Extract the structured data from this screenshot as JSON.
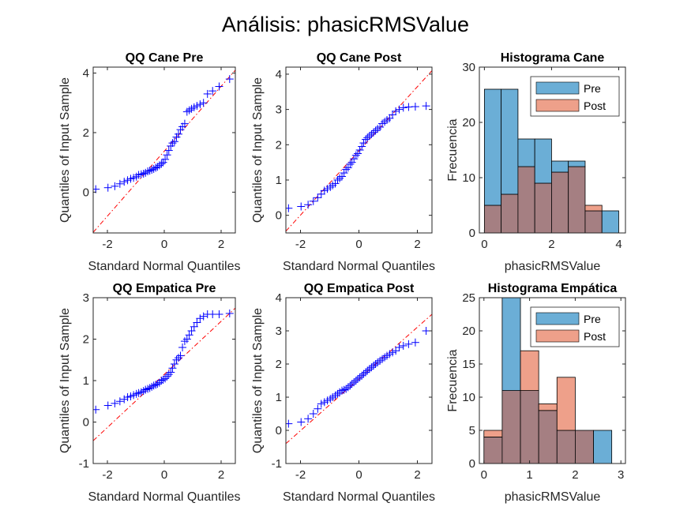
{
  "figure": {
    "title": "Análisis: phasicRMSValue"
  },
  "chart_data": [
    {
      "id": "qq_cane_pre",
      "type": "scatter",
      "title": "QQ Cane Pre",
      "xlabel": "Standard Normal Quantiles",
      "ylabel": "Quantiles of Input Sample",
      "xlim": [
        -2.5,
        2.5
      ],
      "ylim": [
        -1.37,
        4.2
      ],
      "xticks": [
        -2,
        0,
        2
      ],
      "yticks": [
        0,
        2,
        4
      ],
      "marker_color": "#0000ff",
      "ref_line_color": "#ff0000",
      "ref_line": {
        "x": [
          -2.5,
          2.5
        ],
        "y": [
          -1.35,
          4.1
        ]
      },
      "x": [
        -2.41,
        -1.98,
        -1.74,
        -1.56,
        -1.41,
        -1.29,
        -1.18,
        -1.08,
        -0.98,
        -0.9,
        -0.81,
        -0.73,
        -0.66,
        -0.58,
        -0.51,
        -0.44,
        -0.37,
        -0.3,
        -0.24,
        -0.17,
        -0.1,
        -0.04,
        0.03,
        0.1,
        0.16,
        0.23,
        0.29,
        0.36,
        0.43,
        0.5,
        0.57,
        0.64,
        0.72,
        0.8,
        0.88,
        0.96,
        1.05,
        1.15,
        1.26,
        1.38,
        1.52,
        1.7,
        1.93,
        2.3
      ],
      "y": [
        0.1,
        0.15,
        0.2,
        0.28,
        0.35,
        0.4,
        0.45,
        0.48,
        0.52,
        0.58,
        0.6,
        0.62,
        0.65,
        0.7,
        0.72,
        0.75,
        0.78,
        0.82,
        0.85,
        0.9,
        0.95,
        1.0,
        1.1,
        1.25,
        1.4,
        1.55,
        1.65,
        1.7,
        1.85,
        1.95,
        2.1,
        2.2,
        2.3,
        2.7,
        2.75,
        2.8,
        2.85,
        2.9,
        2.95,
        3.0,
        3.3,
        3.4,
        3.55,
        3.8
      ]
    },
    {
      "id": "qq_cane_post",
      "type": "scatter",
      "title": "QQ Cane Post",
      "xlabel": "Standard Normal Quantiles",
      "ylabel": "Quantiles of Input Sample",
      "xlim": [
        -2.5,
        2.5
      ],
      "ylim": [
        -0.5,
        4.2
      ],
      "xticks": [
        -2,
        0,
        2
      ],
      "yticks": [
        0,
        1,
        2,
        3,
        4
      ],
      "marker_color": "#0000ff",
      "ref_line_color": "#ff0000",
      "ref_line": {
        "x": [
          -2.5,
          2.5
        ],
        "y": [
          -0.45,
          4.1
        ]
      },
      "x": [
        -2.41,
        -1.98,
        -1.74,
        -1.56,
        -1.41,
        -1.29,
        -1.18,
        -1.08,
        -0.98,
        -0.9,
        -0.81,
        -0.73,
        -0.66,
        -0.58,
        -0.51,
        -0.44,
        -0.37,
        -0.3,
        -0.24,
        -0.17,
        -0.1,
        -0.04,
        0.03,
        0.1,
        0.16,
        0.23,
        0.29,
        0.36,
        0.43,
        0.5,
        0.57,
        0.64,
        0.72,
        0.8,
        0.88,
        0.96,
        1.05,
        1.15,
        1.26,
        1.38,
        1.52,
        1.7,
        1.93,
        2.3
      ],
      "y": [
        0.2,
        0.25,
        0.3,
        0.4,
        0.5,
        0.6,
        0.7,
        0.75,
        0.8,
        0.85,
        0.9,
        1.0,
        1.05,
        1.1,
        1.2,
        1.3,
        1.35,
        1.45,
        1.5,
        1.6,
        1.7,
        1.75,
        1.85,
        1.95,
        2.05,
        2.15,
        2.2,
        2.25,
        2.3,
        2.35,
        2.4,
        2.45,
        2.5,
        2.6,
        2.65,
        2.7,
        2.75,
        2.85,
        2.95,
        3.0,
        3.05,
        3.07,
        3.08,
        3.1
      ]
    },
    {
      "id": "hist_cane",
      "type": "bar",
      "title": "Histograma Cane",
      "xlabel": "phasicRMSValue",
      "ylabel": "Frecuencia",
      "xlim": [
        -0.15,
        4.2
      ],
      "ylim": [
        0,
        30
      ],
      "xticks": [
        0,
        2,
        4
      ],
      "yticks": [
        0,
        10,
        20,
        30
      ],
      "bin_edges": [
        0,
        0.5,
        1.0,
        1.5,
        2.0,
        2.5,
        3.0,
        3.5,
        4.0
      ],
      "series": [
        {
          "name": "Pre",
          "color": "#6baed6",
          "values": [
            26,
            26,
            17,
            17,
            13,
            13,
            4,
            4
          ]
        },
        {
          "name": "Post",
          "color": "#eea08a",
          "values": [
            5,
            7,
            12,
            9,
            11,
            12,
            5,
            0
          ]
        }
      ],
      "overlap_color": "#a57f82",
      "legend_position": "top-right"
    },
    {
      "id": "qq_empatica_pre",
      "type": "scatter",
      "title": "QQ Empatica Pre",
      "xlabel": "Standard Normal Quantiles",
      "ylabel": "Quantiles of Input Sample",
      "xlim": [
        -2.5,
        2.5
      ],
      "ylim": [
        -1.0,
        3.0
      ],
      "xticks": [
        -2,
        0,
        2
      ],
      "yticks": [
        -1,
        0,
        1,
        2,
        3
      ],
      "marker_color": "#0000ff",
      "ref_line_color": "#ff0000",
      "ref_line": {
        "x": [
          -2.5,
          2.5
        ],
        "y": [
          -0.45,
          2.75
        ]
      },
      "x": [
        -2.41,
        -1.98,
        -1.74,
        -1.56,
        -1.41,
        -1.29,
        -1.18,
        -1.08,
        -0.98,
        -0.9,
        -0.81,
        -0.73,
        -0.66,
        -0.58,
        -0.51,
        -0.44,
        -0.37,
        -0.3,
        -0.24,
        -0.17,
        -0.1,
        -0.04,
        0.03,
        0.1,
        0.16,
        0.23,
        0.29,
        0.36,
        0.43,
        0.5,
        0.57,
        0.64,
        0.72,
        0.8,
        0.88,
        0.96,
        1.05,
        1.15,
        1.26,
        1.38,
        1.52,
        1.7,
        1.93,
        2.3
      ],
      "y": [
        0.3,
        0.4,
        0.45,
        0.5,
        0.55,
        0.6,
        0.62,
        0.65,
        0.68,
        0.7,
        0.72,
        0.75,
        0.78,
        0.8,
        0.82,
        0.85,
        0.88,
        0.9,
        0.92,
        0.95,
        1.0,
        1.02,
        1.05,
        1.1,
        1.15,
        1.2,
        1.3,
        1.4,
        1.5,
        1.55,
        1.6,
        1.8,
        1.95,
        2.0,
        2.1,
        2.2,
        2.3,
        2.4,
        2.5,
        2.55,
        2.6,
        2.6,
        2.6,
        2.62
      ]
    },
    {
      "id": "qq_empatica_post",
      "type": "scatter",
      "title": "QQ Empatica Post",
      "xlabel": "Standard Normal Quantiles",
      "ylabel": "Quantiles of Input Sample",
      "xlim": [
        -2.5,
        2.5
      ],
      "ylim": [
        -1.0,
        4.0
      ],
      "xticks": [
        -2,
        0,
        2
      ],
      "yticks": [
        -1,
        0,
        1,
        2,
        3,
        4
      ],
      "marker_color": "#0000ff",
      "ref_line_color": "#ff0000",
      "ref_line": {
        "x": [
          -2.5,
          2.5
        ],
        "y": [
          -0.4,
          3.5
        ]
      },
      "x": [
        -2.41,
        -1.98,
        -1.74,
        -1.56,
        -1.41,
        -1.29,
        -1.18,
        -1.08,
        -0.98,
        -0.9,
        -0.81,
        -0.73,
        -0.66,
        -0.58,
        -0.51,
        -0.44,
        -0.37,
        -0.3,
        -0.24,
        -0.17,
        -0.1,
        -0.04,
        0.03,
        0.1,
        0.16,
        0.23,
        0.29,
        0.36,
        0.43,
        0.5,
        0.57,
        0.64,
        0.72,
        0.8,
        0.88,
        0.96,
        1.05,
        1.15,
        1.26,
        1.38,
        1.52,
        1.7,
        1.93,
        2.3
      ],
      "y": [
        0.2,
        0.25,
        0.35,
        0.5,
        0.65,
        0.8,
        0.85,
        0.9,
        0.95,
        1.0,
        1.05,
        1.1,
        1.15,
        1.2,
        1.22,
        1.25,
        1.3,
        1.35,
        1.4,
        1.45,
        1.5,
        1.55,
        1.6,
        1.65,
        1.7,
        1.75,
        1.8,
        1.85,
        1.9,
        1.95,
        2.0,
        2.05,
        2.1,
        2.15,
        2.2,
        2.25,
        2.3,
        2.35,
        2.4,
        2.5,
        2.55,
        2.6,
        2.65,
        3.0
      ]
    },
    {
      "id": "hist_empatica",
      "type": "bar",
      "title": "Histograma Empática",
      "xlabel": "phasicRMSValue",
      "ylabel": "Frecuencia",
      "xlim": [
        -0.1,
        3.1
      ],
      "ylim": [
        0,
        25
      ],
      "xticks": [
        0,
        1,
        2,
        3
      ],
      "yticks": [
        0,
        5,
        10,
        15,
        20,
        25
      ],
      "bin_edges": [
        0,
        0.4,
        0.8,
        1.2,
        1.6,
        2.0,
        2.4,
        2.8
      ],
      "series": [
        {
          "name": "Pre",
          "color": "#6baed6",
          "values": [
            4,
            26,
            11,
            8,
            5,
            5,
            5
          ]
        },
        {
          "name": "Post",
          "color": "#eea08a",
          "values": [
            5,
            11,
            17,
            9,
            13,
            5,
            0
          ]
        }
      ],
      "overlap_color": "#a57f82",
      "legend_position": "top-right"
    }
  ]
}
